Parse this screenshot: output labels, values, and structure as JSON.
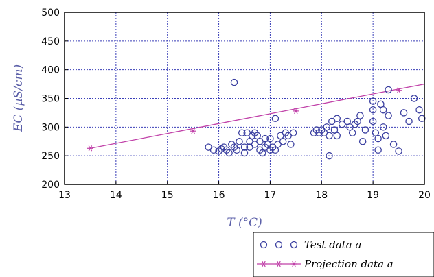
{
  "chart_data": {
    "type": "scatter",
    "xlabel": "T (°C)",
    "ylabel": "EC (μS/cm)",
    "xlim": [
      13,
      20
    ],
    "ylim": [
      200,
      500
    ],
    "xticks": [
      13,
      14,
      15,
      16,
      17,
      18,
      19,
      20
    ],
    "yticks": [
      200,
      250,
      300,
      350,
      400,
      450,
      500
    ],
    "grid": true,
    "legend_position": "bottom-right, below plot",
    "series": [
      {
        "name": "Test data a",
        "style": "circles",
        "color": "#3a3fa0",
        "points": [
          [
            15.8,
            265
          ],
          [
            15.9,
            260
          ],
          [
            16.0,
            258
          ],
          [
            16.05,
            262
          ],
          [
            16.1,
            265
          ],
          [
            16.15,
            260
          ],
          [
            16.2,
            255
          ],
          [
            16.25,
            270
          ],
          [
            16.3,
            265
          ],
          [
            16.3,
            378
          ],
          [
            16.35,
            260
          ],
          [
            16.4,
            275
          ],
          [
            16.45,
            290
          ],
          [
            16.5,
            265
          ],
          [
            16.5,
            255
          ],
          [
            16.55,
            290
          ],
          [
            16.6,
            275
          ],
          [
            16.6,
            265
          ],
          [
            16.65,
            285
          ],
          [
            16.7,
            290
          ],
          [
            16.7,
            270
          ],
          [
            16.75,
            285
          ],
          [
            16.8,
            275
          ],
          [
            16.8,
            260
          ],
          [
            16.85,
            255
          ],
          [
            16.9,
            280
          ],
          [
            16.9,
            265
          ],
          [
            16.95,
            270
          ],
          [
            17.0,
            280
          ],
          [
            17.0,
            260
          ],
          [
            17.05,
            265
          ],
          [
            17.1,
            315
          ],
          [
            17.1,
            260
          ],
          [
            17.15,
            270
          ],
          [
            17.2,
            285
          ],
          [
            17.25,
            275
          ],
          [
            17.3,
            290
          ],
          [
            17.35,
            285
          ],
          [
            17.4,
            270
          ],
          [
            17.45,
            290
          ],
          [
            17.85,
            290
          ],
          [
            17.9,
            295
          ],
          [
            17.95,
            290
          ],
          [
            18.0,
            295
          ],
          [
            18.05,
            290
          ],
          [
            18.1,
            300
          ],
          [
            18.15,
            285
          ],
          [
            18.15,
            250
          ],
          [
            18.2,
            310
          ],
          [
            18.25,
            295
          ],
          [
            18.3,
            285
          ],
          [
            18.3,
            315
          ],
          [
            18.4,
            305
          ],
          [
            18.5,
            310
          ],
          [
            18.55,
            300
          ],
          [
            18.6,
            290
          ],
          [
            18.65,
            305
          ],
          [
            18.7,
            310
          ],
          [
            18.75,
            320
          ],
          [
            18.8,
            275
          ],
          [
            18.85,
            295
          ],
          [
            19.0,
            345
          ],
          [
            19.0,
            330
          ],
          [
            19.0,
            310
          ],
          [
            19.05,
            290
          ],
          [
            19.1,
            280
          ],
          [
            19.1,
            260
          ],
          [
            19.15,
            340
          ],
          [
            19.2,
            330
          ],
          [
            19.2,
            300
          ],
          [
            19.25,
            285
          ],
          [
            19.3,
            365
          ],
          [
            19.3,
            320
          ],
          [
            19.4,
            270
          ],
          [
            19.5,
            258
          ],
          [
            19.6,
            325
          ],
          [
            19.7,
            310
          ],
          [
            19.8,
            350
          ],
          [
            19.9,
            330
          ],
          [
            19.95,
            315
          ]
        ]
      },
      {
        "name": "Projection data a",
        "style": "line-with-star-markers",
        "color": "#c040a8",
        "line_x": [
          13.5,
          20.0
        ],
        "line_y": [
          263,
          375
        ],
        "markers": [
          [
            13.5,
            263
          ],
          [
            15.5,
            293
          ],
          [
            17.5,
            328
          ],
          [
            19.5,
            364
          ]
        ]
      }
    ]
  }
}
